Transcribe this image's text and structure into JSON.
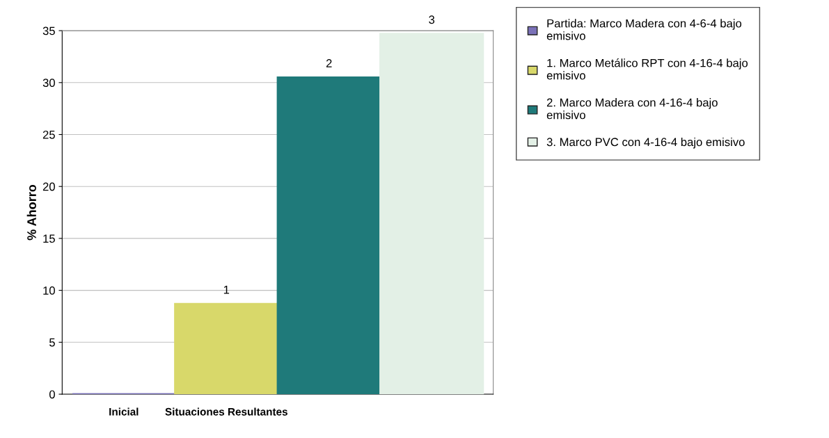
{
  "chart_data": {
    "type": "bar",
    "ylabel": "% Ahorro",
    "categories": [
      "Inicial",
      "Situaciones Resultantes",
      null,
      null
    ],
    "series": [
      {
        "name": "Partida: Marco Madera con 4-6-4 bajo emisivo",
        "color": "#7b72b8",
        "values": [
          0,
          null,
          null,
          null
        ]
      },
      {
        "name": "1. Marco Metálico RPT con 4-16-4 bajo emisivo",
        "color": "#d8d86a",
        "values": [
          null,
          8.7,
          null,
          null
        ]
      },
      {
        "name": "2. Marco Madera con 4-16-4 bajo emisivo",
        "color": "#1f7a7a",
        "values": [
          null,
          null,
          30.5,
          null
        ]
      },
      {
        "name": "3. Marco PVC con 4-16-4 bajo emisivo",
        "color": "#e3f0e6",
        "values": [
          null,
          null,
          null,
          34.7
        ]
      }
    ],
    "annotations": [
      "1",
      "2",
      "3"
    ],
    "ylim": [
      0,
      35
    ],
    "yticks": [
      0,
      5,
      10,
      15,
      20,
      25,
      30,
      35
    ],
    "grid": "y",
    "legend": "top right"
  }
}
